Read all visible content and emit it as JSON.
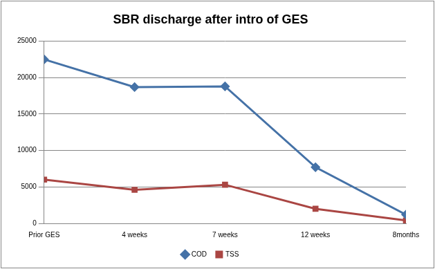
{
  "chart_data": {
    "type": "line",
    "title": "SBR discharge after intro of GES",
    "categories": [
      "Prior GES",
      "4 weeks",
      "7 weeks",
      "12 weeks",
      "8months"
    ],
    "series": [
      {
        "name": "COD",
        "color": "#4572a7",
        "marker": "diamond",
        "line_style": "solid",
        "values": [
          22500,
          18700,
          18800,
          7700,
          1200
        ]
      },
      {
        "name": "TSS",
        "color": "#aa4643",
        "marker": "square",
        "line_style": "solid",
        "values": [
          6000,
          4600,
          5300,
          2000,
          400
        ]
      }
    ],
    "ylim": [
      0,
      25000
    ],
    "yticks": [
      0,
      5000,
      10000,
      15000,
      20000,
      25000
    ],
    "grid": true,
    "legend": "bottom"
  }
}
